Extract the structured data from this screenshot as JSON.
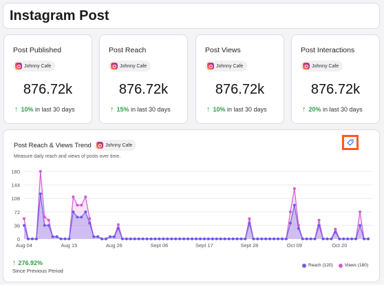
{
  "header": {
    "title": "Instagram Post"
  },
  "cards": [
    {
      "title": "Post Published",
      "account": "Johnny Cafe",
      "value": "876.72k",
      "pct": "10%",
      "suffix": "in last 30 days"
    },
    {
      "title": "Post Reach",
      "account": "Johnny Cafe",
      "value": "876.72k",
      "pct": "15%",
      "suffix": "in last 30 days"
    },
    {
      "title": "Post Views",
      "account": "Johnny Cafe",
      "value": "876.72k",
      "pct": "10%",
      "suffix": "in last 30 days"
    },
    {
      "title": "Post Interactions",
      "account": "Johnny Cafe",
      "value": "876.72k",
      "pct": "20%",
      "suffix": "in last 30 days"
    }
  ],
  "trend": {
    "title": "Post Reach & Views Trend",
    "account": "Johnny Cafe",
    "subtitle": "Measure daily reach and views of posts over time.",
    "growth": "276.92%",
    "since": "Since Previous Period",
    "tag_icon": "tag-icon"
  },
  "colors": {
    "reach": "#6c5ce7",
    "views": "#d05ad4",
    "accent": "#ff5a1f",
    "up": "#2f9e44"
  },
  "chart_data": {
    "type": "area",
    "title": "Post Reach & Views Trend",
    "xlabel": "",
    "ylabel": "",
    "ylim": [
      0,
      180
    ],
    "yticks": [
      "0",
      "36",
      "72",
      "108",
      "144",
      "180"
    ],
    "xticks": [
      {
        "label": "Aug 04",
        "index": 0
      },
      {
        "label": "Aug 15",
        "index": 11
      },
      {
        "label": "Aug 26",
        "index": 22
      },
      {
        "label": "Sept 06",
        "index": 33
      },
      {
        "label": "Sept 17",
        "index": 44
      },
      {
        "label": "Sept 28",
        "index": 55
      },
      {
        "label": "Oct 09",
        "index": 66
      },
      {
        "label": "Oct 20",
        "index": 77
      }
    ],
    "grid": true,
    "legend_position": "bottom-right",
    "series": [
      {
        "name": "Reach (120)",
        "color": "#6c5ce7",
        "values": [
          36,
          0,
          0,
          0,
          120,
          36,
          36,
          6,
          6,
          0,
          0,
          0,
          72,
          58,
          58,
          72,
          42,
          6,
          6,
          0,
          0,
          6,
          6,
          28,
          0,
          0,
          0,
          0,
          0,
          0,
          0,
          0,
          0,
          0,
          0,
          0,
          0,
          0,
          0,
          0,
          0,
          0,
          0,
          0,
          0,
          0,
          0,
          0,
          0,
          0,
          0,
          0,
          0,
          0,
          0,
          42,
          0,
          0,
          0,
          0,
          0,
          0,
          0,
          0,
          0,
          42,
          90,
          28,
          0,
          0,
          0,
          0,
          36,
          0,
          0,
          0,
          18,
          0,
          0,
          0,
          0,
          0,
          36,
          0,
          0
        ]
      },
      {
        "name": "Views (180)",
        "color": "#d05ad4",
        "values": [
          54,
          0,
          0,
          0,
          180,
          58,
          50,
          6,
          6,
          0,
          0,
          0,
          112,
          90,
          90,
          112,
          54,
          6,
          6,
          0,
          0,
          6,
          6,
          38,
          0,
          0,
          0,
          0,
          0,
          0,
          0,
          0,
          0,
          0,
          0,
          0,
          0,
          0,
          0,
          0,
          0,
          0,
          0,
          0,
          0,
          0,
          0,
          0,
          0,
          0,
          0,
          0,
          0,
          0,
          0,
          54,
          0,
          0,
          0,
          0,
          0,
          0,
          0,
          0,
          0,
          72,
          134,
          36,
          0,
          0,
          0,
          0,
          50,
          0,
          0,
          0,
          26,
          0,
          0,
          0,
          0,
          0,
          72,
          0,
          0
        ]
      }
    ]
  }
}
